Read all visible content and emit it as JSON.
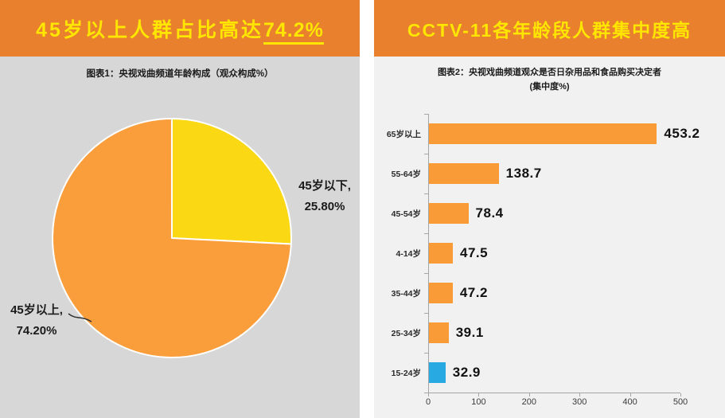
{
  "colors": {
    "header_bg": "#E8802E",
    "header_text": "#FFE600",
    "left_chart_bg": "#D7D7D7",
    "right_chart_bg": "#F1F1F1",
    "pie_orange": "#FA9D3B",
    "pie_yellow": "#FAD814",
    "bar_orange": "#F99C38",
    "bar_blue": "#29A9E1",
    "axis_gray": "#A6A6A6"
  },
  "left_panel": {
    "title_prefix": "45岁以上人群占比高达",
    "title_highlight": "74.2%",
    "subtitle": "图表1：央视戏曲频道年龄构成（观众构成%）",
    "labels": {
      "below45_line1": "45岁以下,",
      "below45_line2": "25.80%",
      "above45_line1": "45岁以上,",
      "above45_line2": "74.20%"
    }
  },
  "right_panel": {
    "title": "CCTV-11各年龄段人群集中度高",
    "subtitle_line1": "图表2：央视戏曲频道观众是否日杂用品和食品购买决定者",
    "subtitle_line2": "(集中度%)"
  },
  "chart_data": [
    {
      "type": "pie",
      "title": "央视戏曲频道年龄构成（观众构成%）",
      "start_angle": "top",
      "direction": "clockwise",
      "slices": [
        {
          "label": "45岁以下",
          "value": 25.8,
          "color": "#FAD814"
        },
        {
          "label": "45岁以上",
          "value": 74.2,
          "color": "#FA9D3B"
        }
      ]
    },
    {
      "type": "bar",
      "orientation": "horizontal",
      "title": "央视戏曲频道观众是否日杂用品和食品购买决定者（集中度%）",
      "categories": [
        "65岁以上",
        "55-64岁",
        "45-54岁",
        "4-14岁",
        "35-44岁",
        "25-34岁",
        "15-24岁"
      ],
      "values": [
        453.2,
        138.7,
        78.4,
        47.5,
        47.2,
        39.1,
        32.9
      ],
      "bar_colors": [
        "#F99C38",
        "#F99C38",
        "#F99C38",
        "#F99C38",
        "#F99C38",
        "#F99C38",
        "#29A9E1"
      ],
      "xlim": [
        0,
        500
      ],
      "x_ticks": [
        0,
        100,
        200,
        300,
        400,
        500
      ],
      "grid": false,
      "legend": false
    }
  ]
}
